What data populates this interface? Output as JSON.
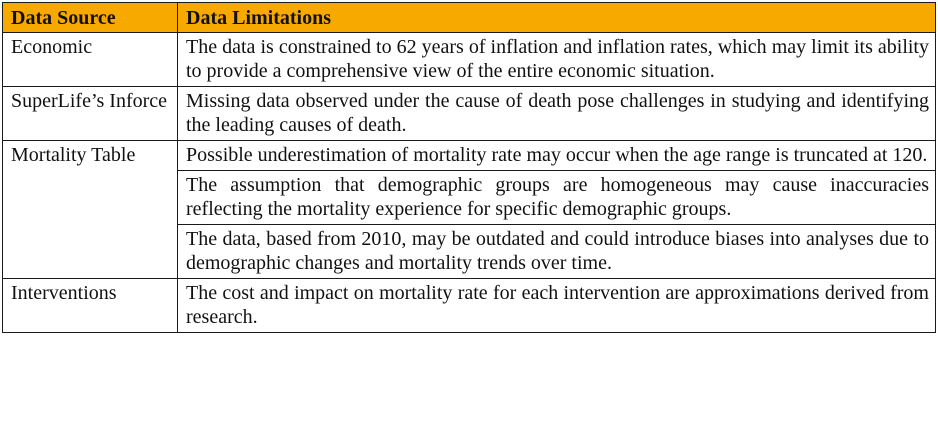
{
  "header": {
    "col_source": "Data Source",
    "col_limitations": "Data Limitations"
  },
  "rows": [
    {
      "source": "Economic",
      "limitations": [
        "The data is constrained to 62 years of inflation and inflation rates, which may limit its ability to provide a comprehensive view of the entire economic situation."
      ]
    },
    {
      "source": "SuperLife’s Inforce",
      "limitations": [
        "Missing data observed under the cause of death pose challenges in studying and identifying the leading causes of death."
      ]
    },
    {
      "source": "Mortality Table",
      "limitations": [
        "Possible underestimation of mortality rate may occur when the age range is truncated at 120.",
        "The assumption that demographic groups are homogeneous may cause inaccuracies reflecting the mortality experience for specific demographic groups.",
        "The data, based from 2010, may be outdated and could introduce biases into analyses due to demographic changes and mortality trends over time."
      ]
    },
    {
      "source": "Interventions",
      "limitations": [
        "The cost and impact on mortality rate for each intervention are approximations derived from research."
      ]
    }
  ]
}
